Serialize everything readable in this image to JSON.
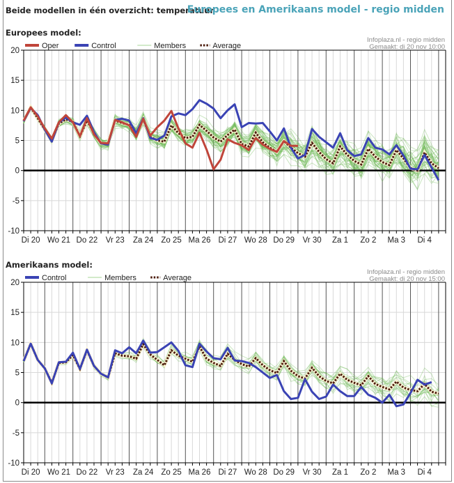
{
  "header": {
    "title": "Beide modellen in één overzicht: temperatuur",
    "subtitle": "Europees en Amerikaans model - regio midden"
  },
  "colors": {
    "oper": "#c0453a",
    "control": "#3a43b4",
    "members": "#6ab84f",
    "average": "#4a1a0a",
    "subtitle": "#4aa3b8"
  },
  "chart_data": [
    {
      "type": "line",
      "title": "Europees model:",
      "credit_line1": "Infoplaza.nl - regio midden",
      "credit_line2": "Gemaakt: di 20 nov 10:00",
      "legend": [
        "Oper",
        "Control",
        "Members",
        "Average"
      ],
      "legend_placement": "top-left",
      "xlabel": "",
      "ylabel": "",
      "ylim": [
        -10,
        20
      ],
      "yticks": [
        20,
        15,
        10,
        5,
        0,
        -5,
        -10
      ],
      "x_categories": [
        "Di 20",
        "Wo 21",
        "Do 22",
        "Vr 23",
        "Za 24",
        "Zo 25",
        "Ma 26",
        "Di 27",
        "Wo 28",
        "Do 29",
        "Vr 30",
        "Za 1",
        "Zo 2",
        "Ma 3",
        "Di 4"
      ],
      "steps_per_day": 4,
      "grid": true,
      "series": [
        {
          "name": "Oper",
          "values": [
            8.3,
            10.5,
            9.0,
            7.0,
            5.3,
            8.0,
            9.2,
            8.0,
            5.7,
            8.7,
            6.0,
            4.6,
            4.5,
            8.4,
            8.0,
            7.5,
            5.6,
            8.6,
            5.8,
            7.2,
            8.3,
            9.9,
            7.0,
            4.5,
            3.8,
            6.3,
            3.5,
            0.2,
            1.8,
            5.2,
            4.6,
            4.2,
            3.4,
            5.4,
            4.3,
            3.6,
            3.1,
            4.9,
            4.1,
            4.1
          ]
        },
        {
          "name": "Control",
          "values": [
            8.2,
            10.4,
            9.2,
            6.8,
            4.8,
            8.0,
            8.8,
            8.0,
            7.6,
            9.1,
            6.4,
            4.5,
            4.3,
            8.4,
            8.6,
            8.3,
            6.2,
            8.7,
            5.4,
            5.1,
            5.8,
            9.0,
            9.5,
            9.2,
            10.2,
            11.7,
            11.1,
            10.3,
            8.7,
            10.0,
            11.0,
            7.2,
            7.9,
            7.8,
            7.9,
            6.5,
            5.0,
            7.0,
            3.8,
            2.0,
            2.6,
            6.9,
            5.6,
            4.7,
            3.8,
            6.2,
            3.4,
            2.4,
            2.7,
            5.4,
            3.8,
            3.5,
            2.7,
            4.2,
            2.5,
            0.3,
            0.2,
            2.6,
            0.5,
            -1.6
          ]
        },
        {
          "name": "Average",
          "values": [
            8.2,
            10.5,
            8.7,
            6.8,
            5.0,
            7.8,
            8.5,
            8.1,
            5.7,
            8.3,
            6.2,
            4.5,
            4.5,
            8.3,
            7.9,
            7.6,
            6.0,
            8.5,
            5.6,
            5.0,
            4.8,
            7.5,
            6.2,
            5.4,
            5.6,
            7.6,
            6.6,
            5.5,
            4.8,
            5.9,
            6.8,
            4.4,
            4.0,
            6.3,
            4.7,
            3.8,
            3.1,
            4.9,
            3.8,
            2.9,
            2.3,
            4.6,
            3.1,
            1.9,
            1.2,
            4.0,
            2.6,
            1.6,
            1.0,
            3.6,
            2.3,
            1.4,
            0.9,
            3.4,
            2.0,
            0.4,
            0.0,
            3.0,
            1.2,
            0.4
          ]
        }
      ],
      "members": {
        "count": 50,
        "spread_start": 0.6,
        "spread_end": 6.5
      }
    },
    {
      "type": "line",
      "title": "Amerikaans model:",
      "credit_line1": "Infoplaza.nl - regio midden",
      "credit_line2": "Gemaakt: di 20 nov 15:00",
      "legend": [
        "Control",
        "Members",
        "Average"
      ],
      "legend_placement": "top-left",
      "xlabel": "",
      "ylabel": "",
      "ylim": [
        -10,
        20
      ],
      "yticks": [
        20,
        15,
        10,
        5,
        0,
        -5,
        -10
      ],
      "x_categories": [
        "Di 20",
        "Wo 21",
        "Do 22",
        "Vr 23",
        "Za 24",
        "Zo 25",
        "Ma 26",
        "Di 27",
        "Wo 28",
        "Do 29",
        "Vr 30",
        "Za 1",
        "Zo 2",
        "Ma 3",
        "Di 4"
      ],
      "steps_per_day": 4,
      "grid": true,
      "series": [
        {
          "name": "Control",
          "values": [
            6.9,
            9.8,
            7.1,
            5.7,
            3.2,
            6.7,
            6.8,
            8.3,
            5.6,
            8.8,
            6.1,
            4.8,
            4.2,
            8.7,
            8.2,
            9.2,
            8.2,
            10.3,
            8.3,
            8.4,
            9.2,
            10.0,
            8.6,
            6.2,
            5.9,
            9.8,
            8.5,
            7.4,
            7.2,
            9.1,
            7.0,
            6.9,
            6.6,
            5.9,
            5.0,
            4.1,
            4.6,
            1.9,
            0.6,
            0.8,
            3.9,
            1.8,
            0.6,
            1.0,
            3.0,
            1.9,
            1.1,
            1.1,
            2.6,
            1.3,
            0.8,
            0.0,
            1.3,
            -0.6,
            -0.3,
            1.6,
            3.8,
            3.0,
            3.4
          ]
        },
        {
          "name": "Average",
          "values": [
            6.9,
            9.8,
            7.1,
            5.7,
            3.3,
            6.6,
            6.7,
            7.9,
            5.6,
            8.7,
            6.1,
            4.8,
            4.2,
            8.2,
            7.8,
            7.7,
            7.3,
            9.7,
            8.0,
            7.1,
            6.2,
            8.7,
            7.8,
            7.3,
            6.8,
            9.3,
            7.3,
            6.6,
            6.1,
            8.1,
            7.1,
            6.4,
            6.0,
            7.4,
            6.2,
            5.4,
            4.9,
            6.9,
            5.3,
            4.4,
            4.0,
            5.8,
            4.4,
            3.6,
            3.2,
            4.8,
            3.8,
            3.3,
            2.9,
            4.4,
            3.1,
            2.6,
            2.2,
            3.5,
            2.5,
            2.1,
            1.9,
            3.1,
            1.8,
            1.5
          ]
        }
      ],
      "members": {
        "count": 20,
        "spread_start": 0.3,
        "spread_end": 4.0
      }
    }
  ]
}
